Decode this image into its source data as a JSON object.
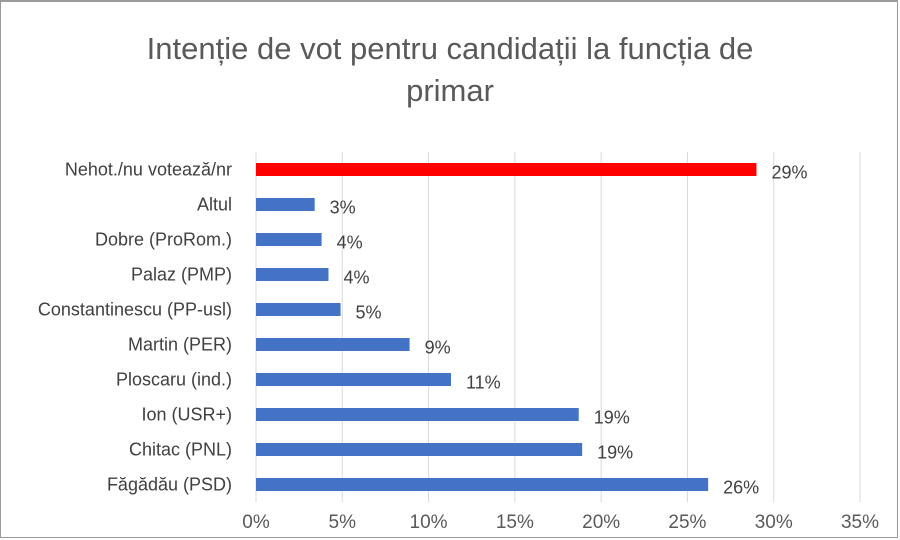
{
  "chart_data": {
    "type": "bar",
    "orientation": "horizontal",
    "title": "Intenție de vot pentru candidații la funcția de primar",
    "categories": [
      "Nehot./nu votează/nr",
      "Altul",
      "Dobre (ProRom.)",
      "Palaz (PMP)",
      "Constantinescu (PP-usl)",
      "Martin (PER)",
      "Ploscaru (ind.)",
      "Ion (USR+)",
      "Chitac (PNL)",
      "Făgădău (PSD)"
    ],
    "values": [
      29,
      3.4,
      3.8,
      4.2,
      4.9,
      8.9,
      11.3,
      18.7,
      18.9,
      26.2
    ],
    "data_labels": [
      "29%",
      "3%",
      "4%",
      "4%",
      "5%",
      "9%",
      "11%",
      "19%",
      "19%",
      "26%"
    ],
    "xlim": [
      0,
      35
    ],
    "x_ticks": [
      0,
      5,
      10,
      15,
      20,
      25,
      30,
      35
    ],
    "x_tick_labels": [
      "0%",
      "5%",
      "10%",
      "15%",
      "20%",
      "25%",
      "30%",
      "35%"
    ],
    "grid": "vertical",
    "colors": {
      "default_bar": "#4472C4",
      "highlight_bar": "#FF0000",
      "highlight_index": 0,
      "grid": "#D9D9D9",
      "text": "#404040"
    }
  }
}
